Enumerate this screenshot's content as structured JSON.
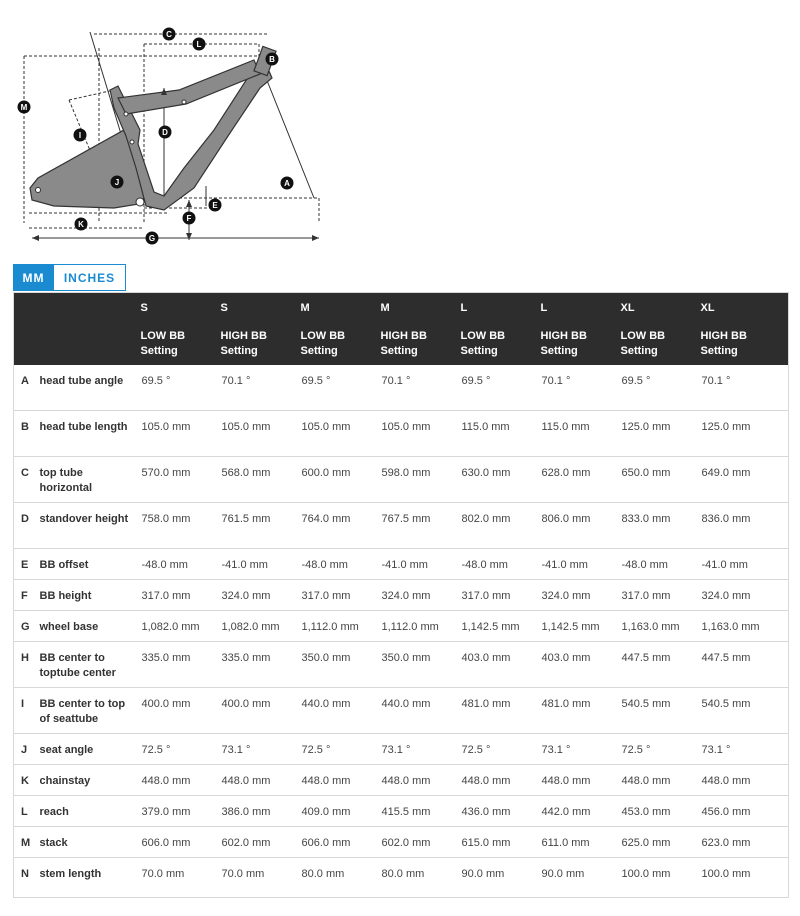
{
  "diagram": {
    "markers": [
      "A",
      "B",
      "C",
      "D",
      "E",
      "F",
      "G",
      "H",
      "I",
      "J",
      "K",
      "L",
      "M"
    ]
  },
  "unit_tabs": {
    "mm": "MM",
    "inches": "INCHES",
    "active": "mm"
  },
  "table": {
    "sizes": [
      "S",
      "S",
      "M",
      "M",
      "L",
      "L",
      "XL",
      "XL"
    ],
    "settings": [
      [
        "LOW BB",
        "Setting"
      ],
      [
        "HIGH BB",
        "Setting"
      ],
      [
        "LOW BB",
        "Setting"
      ],
      [
        "HIGH BB",
        "Setting"
      ],
      [
        "LOW BB",
        "Setting"
      ],
      [
        "HIGH BB",
        "Setting"
      ],
      [
        "LOW BB",
        "Setting"
      ],
      [
        "HIGH BB",
        "Setting"
      ]
    ],
    "rows": [
      {
        "letter": "A",
        "label": "head tube angle",
        "values": [
          "69.5 °",
          "70.1 °",
          "69.5 °",
          "70.1 °",
          "69.5 °",
          "70.1 °",
          "69.5 °",
          "70.1 °"
        ]
      },
      {
        "letter": "B",
        "label": "head tube length",
        "values": [
          "105.0 mm",
          "105.0 mm",
          "105.0 mm",
          "105.0 mm",
          "115.0 mm",
          "115.0 mm",
          "125.0 mm",
          "125.0 mm"
        ]
      },
      {
        "letter": "C",
        "label": "top tube horizontal",
        "values": [
          "570.0 mm",
          "568.0 mm",
          "600.0 mm",
          "598.0 mm",
          "630.0 mm",
          "628.0 mm",
          "650.0 mm",
          "649.0 mm"
        ]
      },
      {
        "letter": "D",
        "label": "standover height",
        "values": [
          "758.0 mm",
          "761.5 mm",
          "764.0 mm",
          "767.5 mm",
          "802.0 mm",
          "806.0 mm",
          "833.0 mm",
          "836.0 mm"
        ]
      },
      {
        "letter": "E",
        "label": "BB offset",
        "values": [
          "-48.0 mm",
          "-41.0 mm",
          "-48.0 mm",
          "-41.0 mm",
          "-48.0 mm",
          "-41.0 mm",
          "-48.0 mm",
          "-41.0 mm"
        ]
      },
      {
        "letter": "F",
        "label": "BB height",
        "values": [
          "317.0 mm",
          "324.0 mm",
          "317.0 mm",
          "324.0 mm",
          "317.0 mm",
          "324.0 mm",
          "317.0 mm",
          "324.0 mm"
        ]
      },
      {
        "letter": "G",
        "label": "wheel base",
        "values": [
          "1,082.0 mm",
          "1,082.0 mm",
          "1,112.0 mm",
          "1,112.0 mm",
          "1,142.5 mm",
          "1,142.5 mm",
          "1,163.0 mm",
          "1,163.0 mm"
        ]
      },
      {
        "letter": "H",
        "label": "BB center to toptube center",
        "values": [
          "335.0 mm",
          "335.0 mm",
          "350.0 mm",
          "350.0 mm",
          "403.0 mm",
          "403.0 mm",
          "447.5 mm",
          "447.5 mm"
        ]
      },
      {
        "letter": "I",
        "label": "BB center to top of seattube",
        "values": [
          "400.0 mm",
          "400.0 mm",
          "440.0 mm",
          "440.0 mm",
          "481.0 mm",
          "481.0 mm",
          "540.5 mm",
          "540.5 mm"
        ]
      },
      {
        "letter": "J",
        "label": "seat angle",
        "values": [
          "72.5 °",
          "73.1 °",
          "72.5 °",
          "73.1 °",
          "72.5 °",
          "73.1 °",
          "72.5 °",
          "73.1 °"
        ]
      },
      {
        "letter": "K",
        "label": "chainstay",
        "values": [
          "448.0 mm",
          "448.0 mm",
          "448.0 mm",
          "448.0 mm",
          "448.0 mm",
          "448.0 mm",
          "448.0 mm",
          "448.0 mm"
        ]
      },
      {
        "letter": "L",
        "label": "reach",
        "values": [
          "379.0 mm",
          "386.0 mm",
          "409.0 mm",
          "415.5 mm",
          "436.0 mm",
          "442.0 mm",
          "453.0 mm",
          "456.0 mm"
        ]
      },
      {
        "letter": "M",
        "label": "stack",
        "values": [
          "606.0 mm",
          "602.0 mm",
          "606.0 mm",
          "602.0 mm",
          "615.0 mm",
          "611.0 mm",
          "625.0 mm",
          "623.0 mm"
        ]
      },
      {
        "letter": "N",
        "label": "stem length",
        "values": [
          "70.0 mm",
          "70.0 mm",
          "80.0 mm",
          "80.0 mm",
          "90.0 mm",
          "90.0 mm",
          "100.0 mm",
          "100.0 mm"
        ]
      }
    ]
  }
}
